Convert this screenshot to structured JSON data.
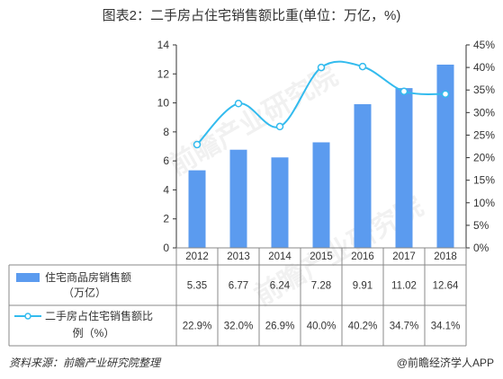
{
  "title": "图表2：二手房占住宅销售额比重(单位：万亿，%)",
  "source": "资料来源：前瞻产业研究院整理",
  "credit": "@前瞻经济学人APP",
  "watermark": "前瞻产业研究院",
  "colors": {
    "bar": "#5b9bef",
    "line": "#33bbee",
    "axis": "#333333",
    "grid": "#888888"
  },
  "chart_data": {
    "type": "bar",
    "categories": [
      "2012",
      "2013",
      "2014",
      "2015",
      "2016",
      "2017",
      "2018"
    ],
    "series": [
      {
        "name": "住宅商品房销售额（万亿）",
        "type": "bar",
        "axis": "left",
        "values": [
          5.35,
          6.77,
          6.24,
          7.28,
          9.91,
          11.02,
          12.64
        ],
        "labels": [
          "5.35",
          "6.77",
          "6.24",
          "7.28",
          "9.91",
          "11.02",
          "12.64"
        ]
      },
      {
        "name": "二手房占住宅销售额比例（%）",
        "type": "line",
        "axis": "right",
        "values": [
          22.9,
          32.0,
          26.9,
          40.0,
          40.2,
          34.7,
          34.1
        ],
        "labels": [
          "22.9%",
          "32.0%",
          "26.9%",
          "40.0%",
          "40.2%",
          "34.7%",
          "34.1%"
        ]
      }
    ],
    "y_left": {
      "min": 0,
      "max": 14,
      "ticks": [
        "0",
        "2",
        "4",
        "6",
        "8",
        "10",
        "12",
        "14"
      ]
    },
    "y_right": {
      "min": 0,
      "max": 45,
      "ticks": [
        "0%",
        "5%",
        "10%",
        "15%",
        "20%",
        "25%",
        "30%",
        "35%",
        "40%",
        "45%"
      ]
    },
    "legend_placement": "data-table-below"
  }
}
